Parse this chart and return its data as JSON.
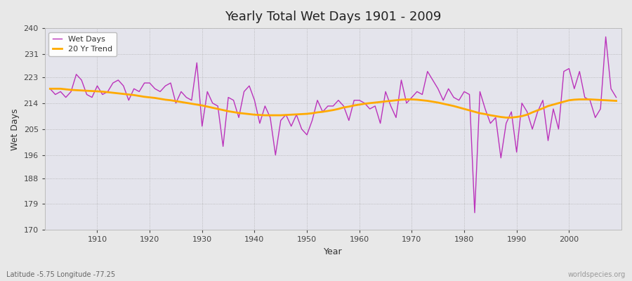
{
  "title": "Yearly Total Wet Days 1901 - 2009",
  "xlabel": "Year",
  "ylabel": "Wet Days",
  "subtitle": "Latitude -5.75 Longitude -77.25",
  "watermark": "worldspecies.org",
  "legend_wet_days": "Wet Days",
  "legend_trend": "20 Yr Trend",
  "wet_days_color": "#bb33bb",
  "trend_color": "#ffaa00",
  "fig_bg_color": "#e8e8e8",
  "plot_bg_color": "#e4e4ec",
  "ylim": [
    170,
    240
  ],
  "yticks": [
    170,
    179,
    188,
    196,
    205,
    214,
    223,
    231,
    240
  ],
  "xticks": [
    1910,
    1920,
    1930,
    1940,
    1950,
    1960,
    1970,
    1980,
    1990,
    2000
  ],
  "xlim": [
    1900,
    2010
  ],
  "years": [
    1901,
    1902,
    1903,
    1904,
    1905,
    1906,
    1907,
    1908,
    1909,
    1910,
    1911,
    1912,
    1913,
    1914,
    1915,
    1916,
    1917,
    1918,
    1919,
    1920,
    1921,
    1922,
    1923,
    1924,
    1925,
    1926,
    1927,
    1928,
    1929,
    1930,
    1931,
    1932,
    1933,
    1934,
    1935,
    1936,
    1937,
    1938,
    1939,
    1940,
    1941,
    1942,
    1943,
    1944,
    1945,
    1946,
    1947,
    1948,
    1949,
    1950,
    1951,
    1952,
    1953,
    1954,
    1955,
    1956,
    1957,
    1958,
    1959,
    1960,
    1961,
    1962,
    1963,
    1964,
    1965,
    1966,
    1967,
    1968,
    1969,
    1970,
    1971,
    1972,
    1973,
    1974,
    1975,
    1976,
    1977,
    1978,
    1979,
    1980,
    1981,
    1982,
    1983,
    1984,
    1985,
    1986,
    1987,
    1988,
    1989,
    1990,
    1991,
    1992,
    1993,
    1994,
    1995,
    1996,
    1997,
    1998,
    1999,
    2000,
    2001,
    2002,
    2003,
    2004,
    2005,
    2006,
    2007,
    2008,
    2009
  ],
  "wet_days": [
    219,
    217,
    218,
    216,
    218,
    224,
    222,
    217,
    216,
    220,
    217,
    218,
    221,
    222,
    220,
    215,
    219,
    218,
    221,
    221,
    219,
    218,
    220,
    221,
    214,
    218,
    216,
    215,
    228,
    206,
    218,
    214,
    213,
    199,
    216,
    215,
    209,
    218,
    220,
    215,
    207,
    213,
    209,
    196,
    208,
    210,
    206,
    210,
    205,
    203,
    208,
    215,
    211,
    213,
    213,
    215,
    213,
    208,
    215,
    215,
    214,
    212,
    213,
    207,
    218,
    213,
    209,
    222,
    214,
    216,
    218,
    217,
    225,
    222,
    219,
    215,
    219,
    216,
    215,
    218,
    217,
    176,
    218,
    212,
    207,
    209,
    195,
    207,
    211,
    197,
    214,
    211,
    205,
    211,
    215,
    201,
    212,
    205,
    225,
    226,
    219,
    225,
    216,
    215,
    209,
    212,
    237,
    219,
    216
  ],
  "trend": [
    219.0,
    219.0,
    219.0,
    218.8,
    218.6,
    218.5,
    218.4,
    218.3,
    218.2,
    218.1,
    218.0,
    217.8,
    217.6,
    217.4,
    217.2,
    217.0,
    216.8,
    216.5,
    216.2,
    216.0,
    215.8,
    215.5,
    215.2,
    215.0,
    214.7,
    214.4,
    214.1,
    213.8,
    213.5,
    213.2,
    212.8,
    212.4,
    212.0,
    211.6,
    211.2,
    210.9,
    210.6,
    210.4,
    210.2,
    210.0,
    209.9,
    209.8,
    209.8,
    209.8,
    209.8,
    209.9,
    210.0,
    210.1,
    210.2,
    210.3,
    210.5,
    210.8,
    211.0,
    211.3,
    211.6,
    212.0,
    212.5,
    212.8,
    213.2,
    213.5,
    213.8,
    214.0,
    214.2,
    214.4,
    214.6,
    214.8,
    215.0,
    215.2,
    215.3,
    215.3,
    215.2,
    215.0,
    214.8,
    214.5,
    214.2,
    213.8,
    213.4,
    213.0,
    212.5,
    212.0,
    211.5,
    211.0,
    210.5,
    210.2,
    209.8,
    209.5,
    209.2,
    209.0,
    209.0,
    209.2,
    209.5,
    210.0,
    210.8,
    211.5,
    212.2,
    213.0,
    213.5,
    214.0,
    214.5,
    215.0,
    215.2,
    215.3,
    215.3,
    215.3,
    215.2,
    215.1,
    215.0,
    214.9,
    214.8
  ]
}
